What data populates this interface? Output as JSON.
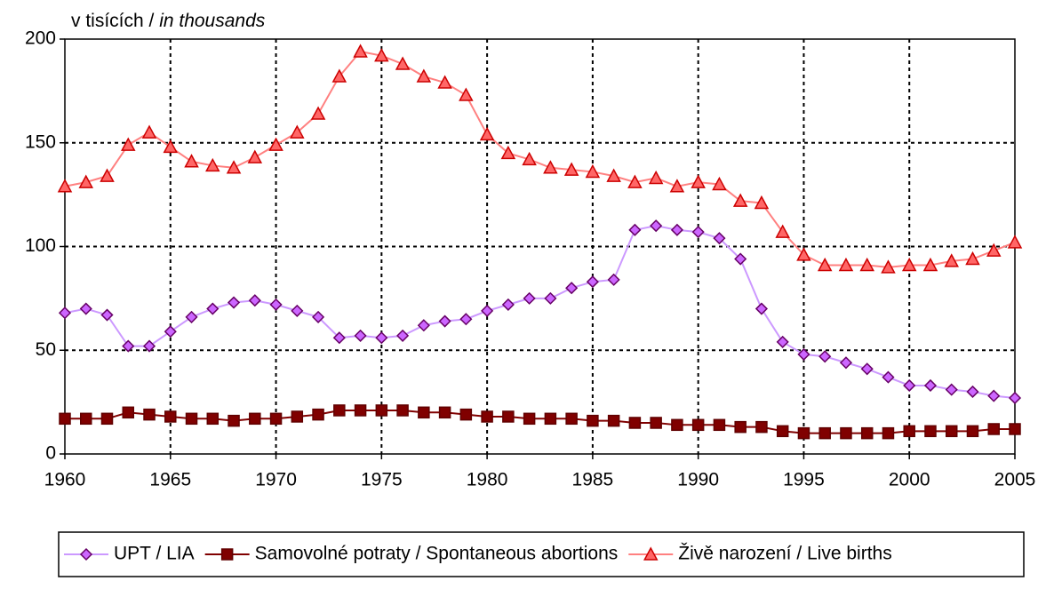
{
  "chart_data": {
    "type": "line",
    "y_label": {
      "cs": "v tisících / ",
      "en": "in thousands"
    },
    "x": [
      1960,
      1961,
      1962,
      1963,
      1964,
      1965,
      1966,
      1967,
      1968,
      1969,
      1970,
      1971,
      1972,
      1973,
      1974,
      1975,
      1976,
      1977,
      1978,
      1979,
      1980,
      1981,
      1982,
      1983,
      1984,
      1985,
      1986,
      1987,
      1988,
      1989,
      1990,
      1991,
      1992,
      1993,
      1994,
      1995,
      1996,
      1997,
      1998,
      1999,
      2000,
      2001,
      2002,
      2003,
      2004,
      2005
    ],
    "xlim": [
      1960,
      2005
    ],
    "xticks": [
      1960,
      1965,
      1970,
      1975,
      1980,
      1985,
      1990,
      1995,
      2000,
      2005
    ],
    "ylim": [
      0,
      200
    ],
    "yticks": [
      0,
      50,
      100,
      150,
      200
    ],
    "grid": true,
    "legend": "bottom",
    "series": [
      {
        "name": "UPT / LIA",
        "color": "#cc99ff",
        "marker": "diamond",
        "marker_color": "#cc66ff",
        "marker_edge": "#660066",
        "values": [
          68,
          70,
          67,
          52,
          52,
          59,
          66,
          70,
          73,
          74,
          72,
          69,
          66,
          56,
          57,
          56,
          57,
          62,
          64,
          65,
          69,
          72,
          75,
          75,
          80,
          83,
          84,
          108,
          110,
          108,
          107,
          104,
          94,
          70,
          54,
          48,
          47,
          44,
          41,
          37,
          33,
          33,
          31,
          30,
          28,
          27
        ]
      },
      {
        "name": "Samovolné potraty / Spontaneous abortions",
        "color": "#800000",
        "marker": "square",
        "marker_color": "#800000",
        "marker_edge": "#600000",
        "values": [
          17,
          17,
          17,
          20,
          19,
          18,
          17,
          17,
          16,
          17,
          17,
          18,
          19,
          21,
          21,
          21,
          21,
          20,
          20,
          19,
          18,
          18,
          17,
          17,
          17,
          16,
          16,
          15,
          15,
          14,
          14,
          14,
          13,
          13,
          11,
          10,
          10,
          10,
          10,
          10,
          11,
          11,
          11,
          11,
          12,
          12
        ]
      },
      {
        "name": "Živě narození / Live births",
        "color": "#ff8080",
        "marker": "triangle",
        "marker_color": "#ff6666",
        "marker_edge": "#cc0000",
        "values": [
          129,
          131,
          134,
          149,
          155,
          148,
          141,
          139,
          138,
          143,
          149,
          155,
          164,
          182,
          194,
          192,
          188,
          182,
          179,
          173,
          154,
          145,
          142,
          138,
          137,
          136,
          134,
          131,
          133,
          129,
          131,
          130,
          122,
          121,
          107,
          96,
          91,
          91,
          91,
          90,
          91,
          91,
          93,
          94,
          98,
          102
        ]
      }
    ]
  }
}
